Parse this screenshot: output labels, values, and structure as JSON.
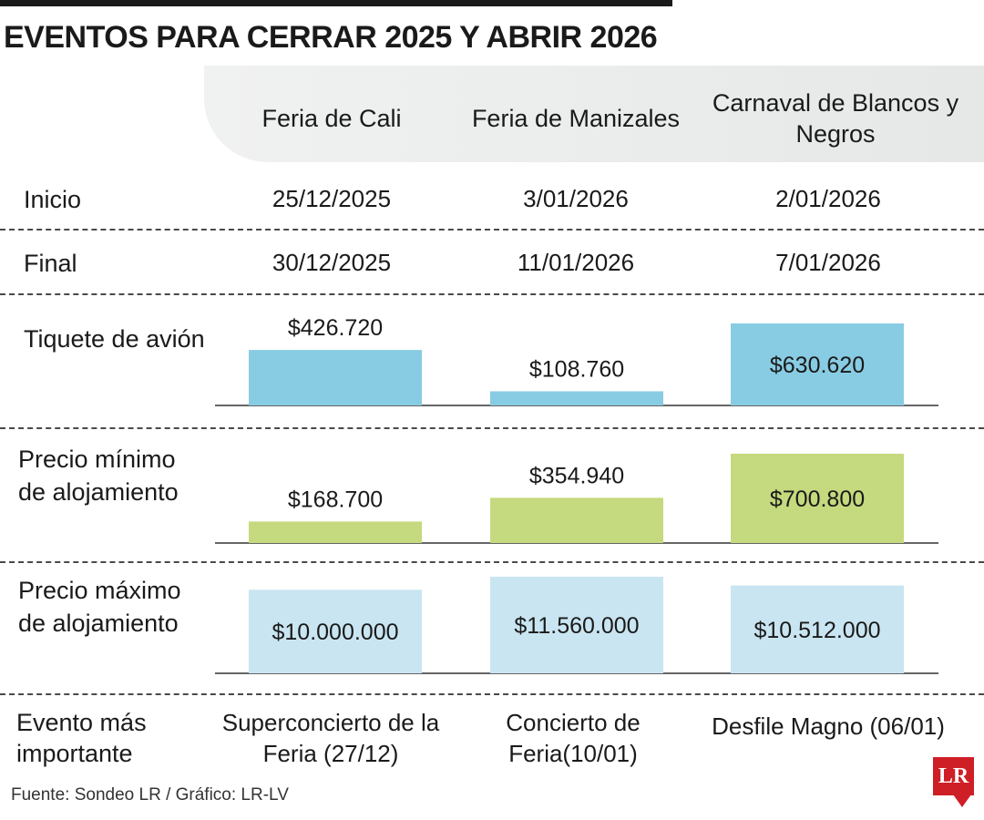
{
  "title": "EVENTOS PARA CERRAR 2025 Y ABRIR 2026",
  "columns": [
    "Feria de Cali",
    "Feria de Manizales",
    "Carnaval de Blancos y Negros"
  ],
  "rows": {
    "inicio": {
      "label": "Inicio",
      "values": [
        "25/12/2025",
        "3/01/2026",
        "2/01/2026"
      ]
    },
    "final": {
      "label": "Final",
      "values": [
        "30/12/2025",
        "11/01/2026",
        "7/01/2026"
      ]
    },
    "evento": {
      "label": "Evento más importante",
      "values": [
        "Superconcierto de la Feria (27/12)",
        "Concierto de Feria(10/01)",
        "Desfile Magno (06/01)"
      ]
    }
  },
  "chart_data": [
    {
      "type": "bar",
      "title": "Tiquete de avión",
      "categories": [
        "Feria de Cali",
        "Feria de Manizales",
        "Carnaval de Blancos y Negros"
      ],
      "values": [
        426720,
        108760,
        630620
      ],
      "labels": [
        "$426.720",
        "$108.760",
        "$630.620"
      ],
      "color": "#88cce3"
    },
    {
      "type": "bar",
      "title": "Precio mínimo de alojamiento",
      "categories": [
        "Feria de Cali",
        "Feria de Manizales",
        "Carnaval de Blancos y Negros"
      ],
      "values": [
        168700,
        354940,
        700800
      ],
      "labels": [
        "$168.700",
        "$354.940",
        "$700.800"
      ],
      "color": "#c5d97e"
    },
    {
      "type": "bar",
      "title": "Precio máximo de alojamiento",
      "categories": [
        "Feria de Cali",
        "Feria de Manizales",
        "Carnaval de Blancos y Negros"
      ],
      "values": [
        10000000,
        11560000,
        10512000
      ],
      "labels": [
        "$10.000.000",
        "$11.560.000",
        "$10.512.000"
      ],
      "color": "#c9e5f1"
    }
  ],
  "footer": "Fuente: Sondeo LR / Gráfico: LR-LV",
  "logo": "LR"
}
